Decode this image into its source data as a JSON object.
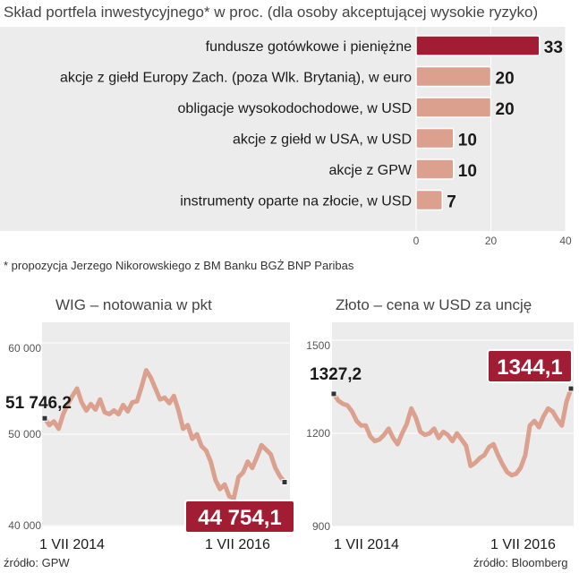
{
  "colors": {
    "panel": "#ececec",
    "bar": "#dca08e",
    "bar_highlight": "#a11d33",
    "line": "#dca08e",
    "badge": "#a11d33",
    "text": "#1a1a1a"
  },
  "top_title": "Skład portfela inwestycyjnego* w proc. (dla osoby akceptującej wysokie ryzyko)",
  "footnote": "* propozycja Jerzego Nikorowskiego z BM Banku BGŻ BNP Paribas",
  "wig": {
    "title": "WIG – notowania w pkt",
    "start_value_label": "51 746,2",
    "end_value_label": "44 754,1",
    "x_tick_left": "1 VII 2014",
    "x_tick_right": "1 VII 2016",
    "source": "źródło: GPW"
  },
  "gold": {
    "title": "Złoto – cena w USD za uncję",
    "start_value_label": "1327,2",
    "end_value_label": "1344,1",
    "x_tick_left": "1 VII 2014",
    "x_tick_right": "1 VII 2016",
    "source": "źródło: Bloomberg"
  },
  "chart_data": [
    {
      "type": "bar",
      "orientation": "horizontal",
      "title": "Skład portfela inwestycyjnego* w proc. (dla osoby akceptującej wysokie ryzyko)",
      "categories": [
        "fundusze gotówkowe i pieniężne",
        "akcje z giełd Europy Zach. (poza Wlk. Brytanią), w euro",
        "obligacje wysokodochodowe, w USD",
        "akcje z giełd w USA, w USD",
        "akcje z GPW",
        "instrumenty oparte na złocie, w USD"
      ],
      "values": [
        33,
        20,
        20,
        10,
        10,
        7
      ],
      "xlim": [
        0,
        40
      ],
      "xticks": [
        "0",
        "20",
        "40"
      ],
      "grid": true
    },
    {
      "type": "line",
      "title": "WIG – notowania w pkt",
      "ylim": [
        40000,
        60000
      ],
      "yticks": [
        "60 000",
        "50 000",
        "40 000"
      ],
      "xlim": [
        2014.0,
        2016.6
      ],
      "xticks": [
        "1 VII 2014",
        "1 VII 2016"
      ],
      "x": [
        2014.0,
        2014.05,
        2014.1,
        2014.15,
        2014.2,
        2014.25,
        2014.3,
        2014.35,
        2014.4,
        2014.45,
        2014.5,
        2014.55,
        2014.6,
        2014.65,
        2014.7,
        2014.75,
        2014.8,
        2014.85,
        2014.9,
        2014.95,
        2015.0,
        2015.05,
        2015.1,
        2015.15,
        2015.2,
        2015.25,
        2015.3,
        2015.35,
        2015.4,
        2015.45,
        2015.5,
        2015.55,
        2015.6,
        2015.65,
        2015.7,
        2015.75,
        2015.8,
        2015.85,
        2015.9,
        2015.95,
        2016.0,
        2016.05,
        2016.1,
        2016.15,
        2016.2,
        2016.25,
        2016.3,
        2016.35,
        2016.4,
        2016.45,
        2016.5,
        2016.55,
        2016.6
      ],
      "y": [
        51746,
        51000,
        51400,
        50600,
        52200,
        53300,
        54200,
        55000,
        53500,
        52600,
        53300,
        52700,
        53800,
        52400,
        52200,
        52600,
        52200,
        53200,
        52500,
        53500,
        53600,
        55200,
        57000,
        56200,
        55000,
        53800,
        54000,
        53400,
        54200,
        52600,
        50600,
        51000,
        49500,
        50000,
        48700,
        48200,
        47000,
        45000,
        44000,
        44500,
        43200,
        43000,
        45300,
        45800,
        47000,
        46300,
        47500,
        48800,
        48300,
        47800,
        46300,
        45400,
        44754
      ],
      "series": [
        {
          "name": "WIG",
          "start": 51746.2,
          "end": 44754.1
        }
      ],
      "grid": true
    },
    {
      "type": "line",
      "title": "Złoto – cena w USD za uncję",
      "ylim": [
        900,
        1500
      ],
      "yticks": [
        "1500",
        "1200",
        "900"
      ],
      "xlim": [
        2014.0,
        2016.6
      ],
      "xticks": [
        "1 VII 2014",
        "1 VII 2016"
      ],
      "x": [
        2014.0,
        2014.05,
        2014.1,
        2014.15,
        2014.2,
        2014.25,
        2014.3,
        2014.35,
        2014.4,
        2014.45,
        2014.5,
        2014.55,
        2014.6,
        2014.65,
        2014.7,
        2014.75,
        2014.8,
        2014.85,
        2014.9,
        2014.95,
        2015.0,
        2015.05,
        2015.1,
        2015.15,
        2015.2,
        2015.25,
        2015.3,
        2015.35,
        2015.4,
        2015.45,
        2015.5,
        2015.55,
        2015.6,
        2015.65,
        2015.7,
        2015.75,
        2015.8,
        2015.85,
        2015.9,
        2015.95,
        2016.0,
        2016.05,
        2016.1,
        2016.15,
        2016.2,
        2016.25,
        2016.3,
        2016.35,
        2016.4,
        2016.45,
        2016.5,
        2016.55,
        2016.6
      ],
      "y": [
        1327.2,
        1305,
        1295,
        1290,
        1270,
        1240,
        1225,
        1225,
        1190,
        1175,
        1180,
        1195,
        1215,
        1185,
        1165,
        1200,
        1230,
        1280,
        1250,
        1205,
        1195,
        1200,
        1215,
        1185,
        1205,
        1195,
        1175,
        1200,
        1180,
        1160,
        1095,
        1105,
        1120,
        1130,
        1155,
        1165,
        1130,
        1100,
        1075,
        1065,
        1070,
        1090,
        1130,
        1225,
        1240,
        1220,
        1255,
        1280,
        1270,
        1245,
        1225,
        1300,
        1344.1
      ],
      "series": [
        {
          "name": "Złoto",
          "start": 1327.2,
          "end": 1344.1
        }
      ],
      "grid": true
    }
  ]
}
